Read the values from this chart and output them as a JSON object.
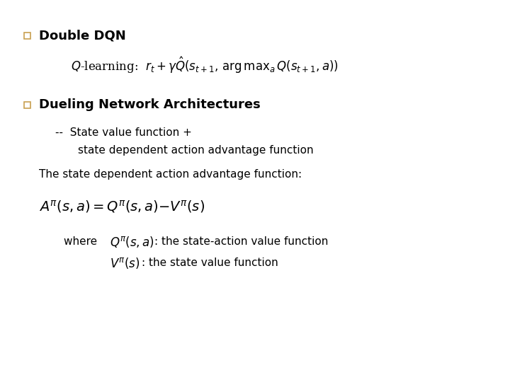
{
  "bg_color": "#ffffff",
  "text_color": "#000000",
  "bullet_edge_color": "#c8a050",
  "bullet_face_color": "#ffffff",
  "title1": "Double DQN",
  "title2": "Dueling Network Architectures",
  "text_adv": "The state dependent action advantage function:",
  "where_label": "where  ",
  "desc_q": ": the state-action value function",
  "desc_v": ": the state value function",
  "figsize": [
    7.2,
    5.4
  ],
  "dpi": 100
}
